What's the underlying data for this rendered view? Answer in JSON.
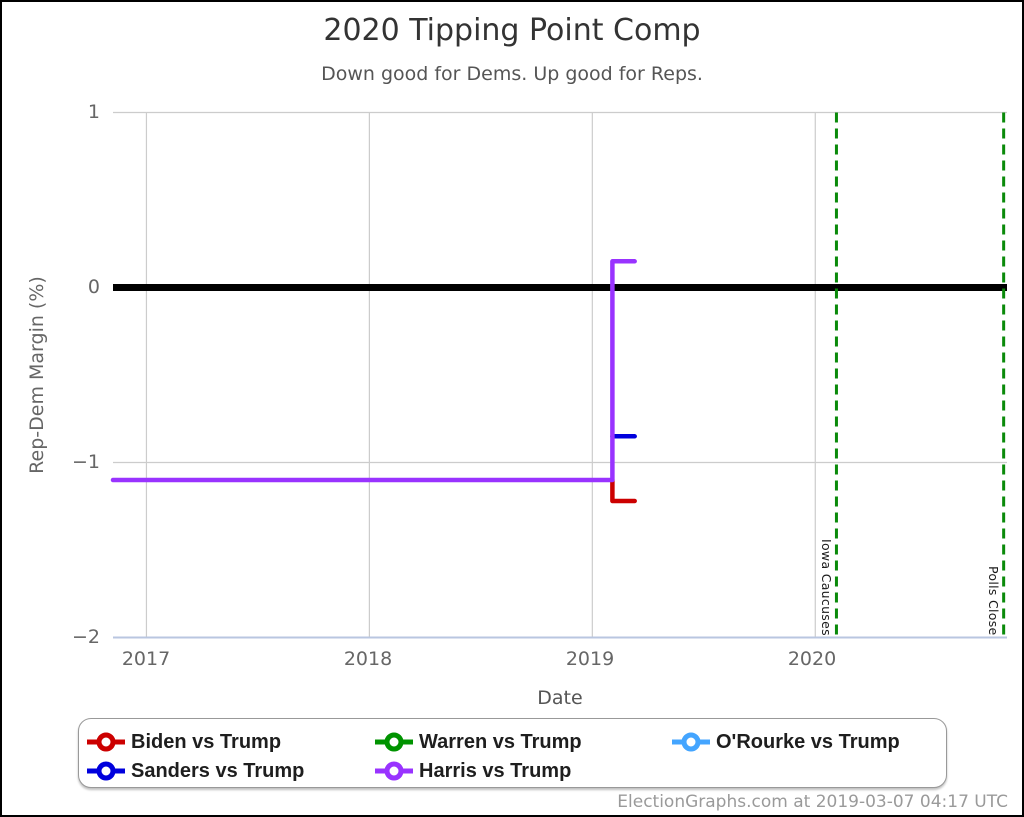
{
  "header": {
    "title": "2020 Tipping Point Comp",
    "subtitle": "Down good for Dems. Up good for Reps."
  },
  "footer": {
    "credit": "ElectionGraphs.com at 2019-03-07 04:17 UTC"
  },
  "chart_data": {
    "type": "line",
    "title": "2020 Tipping Point Comp",
    "subtitle": "Down good for Dems. Up good for Reps.",
    "xlabel": "Date",
    "ylabel": "Rep-Dem Margin (%)",
    "xlim": [
      2016.85,
      2020.86
    ],
    "ylim": [
      -2,
      1
    ],
    "grid": true,
    "legend_position": "bottom",
    "x_ticks": [
      {
        "v": 2017,
        "label": "2017"
      },
      {
        "v": 2018,
        "label": "2018"
      },
      {
        "v": 2019,
        "label": "2019"
      },
      {
        "v": 2020,
        "label": "2020"
      }
    ],
    "y_ticks": [
      {
        "v": 1,
        "label": "1"
      },
      {
        "v": 0,
        "label": "0"
      },
      {
        "v": -1,
        "label": "−1"
      },
      {
        "v": -2,
        "label": "−2"
      }
    ],
    "zero_line": {
      "y": 0,
      "color": "#000000",
      "width": 7
    },
    "annotations": [
      {
        "label": "Iowa Caucuses",
        "x": 2020.095,
        "style": "dashed",
        "color": "#0a8a0a"
      },
      {
        "label": "Polls Close",
        "x": 2020.845,
        "style": "dashed",
        "color": "#0a8a0a"
      }
    ],
    "series": [
      {
        "name": "Biden vs Trump",
        "color": "#cc0000",
        "points": [
          [
            2019.09,
            -1.1
          ],
          [
            2019.09,
            -1.22
          ],
          [
            2019.19,
            -1.22
          ]
        ]
      },
      {
        "name": "Warren vs Trump",
        "color": "#009300",
        "points": []
      },
      {
        "name": "O'Rourke vs Trump",
        "color": "#44a5ff",
        "points": []
      },
      {
        "name": "Sanders vs Trump",
        "color": "#0000dd",
        "points": [
          [
            2019.09,
            -0.85
          ],
          [
            2019.19,
            -0.85
          ]
        ]
      },
      {
        "name": "Harris vs Trump",
        "color": "#9933ff",
        "points": [
          [
            2016.85,
            -1.1
          ],
          [
            2019.09,
            -1.1
          ],
          [
            2019.09,
            0.15
          ],
          [
            2019.19,
            0.15
          ]
        ]
      }
    ],
    "colors": {
      "grid": "#cccccc",
      "axis_line": "#b9c6e0"
    }
  }
}
